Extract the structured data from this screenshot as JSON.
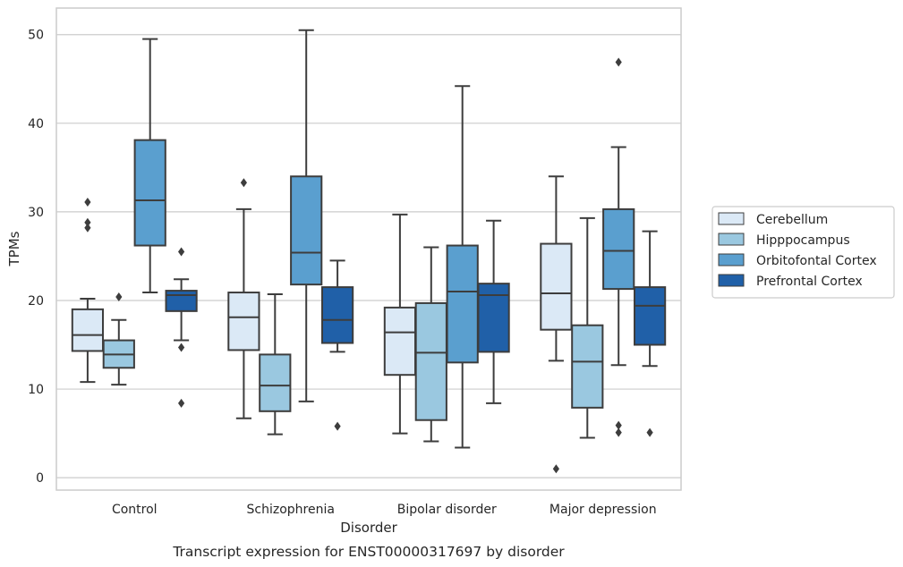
{
  "caption": "Transcript expression for ENST00000317697 by disorder",
  "chart_data": {
    "type": "box",
    "xlabel": "Disorder",
    "ylabel": "TPMs",
    "ylim": [
      -1.4,
      53
    ],
    "yticks": [
      0,
      10,
      20,
      30,
      40,
      50
    ],
    "grid": true,
    "legend_position": "right",
    "categories": [
      "Control",
      "Schizophrenia",
      "Bipolar disorder",
      "Major depression"
    ],
    "colors": [
      "#dbe9f6",
      "#9ac8e0",
      "#5a9fcf",
      "#2060a8"
    ],
    "series": [
      {
        "name": "Cerebellum",
        "boxes": [
          {
            "whislo": 10.8,
            "q1": 14.3,
            "med": 16.1,
            "q3": 19.0,
            "whishi": 20.2,
            "fliers": [
              28.2,
              28.8,
              31.1
            ]
          },
          {
            "whislo": 6.7,
            "q1": 14.4,
            "med": 18.1,
            "q3": 20.9,
            "whishi": 30.3,
            "fliers": [
              33.3
            ]
          },
          {
            "whislo": 5.0,
            "q1": 11.6,
            "med": 16.4,
            "q3": 19.2,
            "whishi": 29.7,
            "fliers": []
          },
          {
            "whislo": 13.2,
            "q1": 16.7,
            "med": 20.8,
            "q3": 26.4,
            "whishi": 34.0,
            "fliers": [
              1.0
            ]
          }
        ]
      },
      {
        "name": "Hipppocampus",
        "boxes": [
          {
            "whislo": 10.5,
            "q1": 12.4,
            "med": 13.9,
            "q3": 15.5,
            "whishi": 17.8,
            "fliers": [
              20.4
            ]
          },
          {
            "whislo": 4.9,
            "q1": 7.5,
            "med": 10.4,
            "q3": 13.9,
            "whishi": 20.7,
            "fliers": []
          },
          {
            "whislo": 4.1,
            "q1": 6.5,
            "med": 14.1,
            "q3": 19.7,
            "whishi": 26.0,
            "fliers": []
          },
          {
            "whislo": 4.5,
            "q1": 7.9,
            "med": 13.1,
            "q3": 17.2,
            "whishi": 29.3,
            "fliers": []
          }
        ]
      },
      {
        "name": "Orbitofontal Cortex",
        "boxes": [
          {
            "whislo": 20.9,
            "q1": 26.2,
            "med": 31.3,
            "q3": 38.1,
            "whishi": 49.5,
            "fliers": []
          },
          {
            "whislo": 8.6,
            "q1": 21.8,
            "med": 25.4,
            "q3": 34.0,
            "whishi": 50.5,
            "fliers": []
          },
          {
            "whislo": 3.4,
            "q1": 13.0,
            "med": 21.0,
            "q3": 26.2,
            "whishi": 44.2,
            "fliers": []
          },
          {
            "whislo": 12.7,
            "q1": 21.3,
            "med": 25.6,
            "q3": 30.3,
            "whishi": 37.3,
            "fliers": [
              5.1,
              5.9,
              46.9
            ]
          }
        ]
      },
      {
        "name": "Prefrontal Cortex",
        "boxes": [
          {
            "whislo": 15.5,
            "q1": 18.8,
            "med": 20.6,
            "q3": 21.1,
            "whishi": 22.4,
            "fliers": [
              8.4,
              14.7,
              25.5
            ]
          },
          {
            "whislo": 14.2,
            "q1": 15.2,
            "med": 17.8,
            "q3": 21.5,
            "whishi": 24.5,
            "fliers": [
              5.8
            ]
          },
          {
            "whislo": 8.4,
            "q1": 14.2,
            "med": 20.6,
            "q3": 21.9,
            "whishi": 29.0,
            "fliers": []
          },
          {
            "whislo": 12.6,
            "q1": 15.0,
            "med": 19.4,
            "q3": 21.5,
            "whishi": 27.8,
            "fliers": [
              5.1
            ]
          }
        ]
      }
    ]
  }
}
